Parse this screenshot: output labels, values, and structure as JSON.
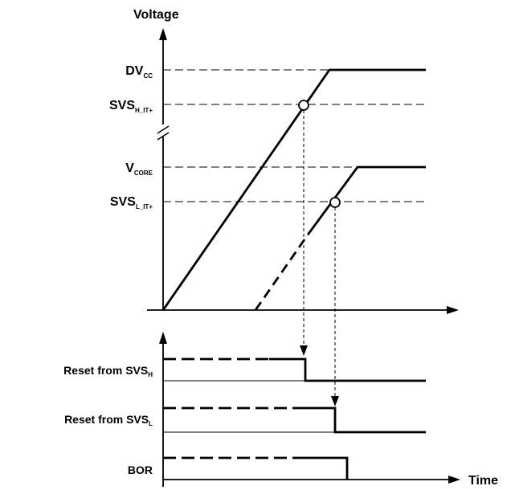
{
  "colors": {
    "ink": "#000000",
    "background": "#ffffff"
  },
  "axes": {
    "y_title": "Voltage",
    "x_title": "Time"
  },
  "voltage_levels": {
    "dvcc": {
      "main": "DV",
      "sub": "CC"
    },
    "svs_h": {
      "main": "SVS",
      "sub": "H_IT+"
    },
    "vcore": {
      "main": "V",
      "sub": "CORE"
    },
    "svs_l": {
      "main": "SVS",
      "sub": "L_IT+"
    }
  },
  "signals": {
    "reset_svs_h": {
      "main": "Reset from SVS",
      "sub": "H"
    },
    "reset_svs_l": {
      "main": "Reset from SVS",
      "sub": "L"
    },
    "bor": {
      "main": "BOR"
    }
  }
}
